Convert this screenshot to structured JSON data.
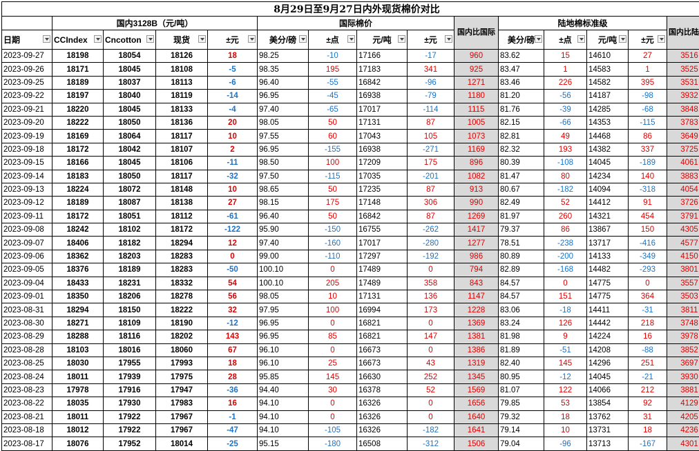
{
  "title": "8月29日至9月27日内外现货棉价对比",
  "groups": {
    "domestic": "国内3128B（元/吨）",
    "international": "国际棉价",
    "land": "陆地棉标准级"
  },
  "headers": {
    "date": "日期",
    "ccindex": "CCIndex",
    "cncotton": "Cncotton",
    "spot": "现货",
    "diff": "±元",
    "usc_lb": "美分/磅",
    "pts": "±点",
    "yuan_t": "元/吨",
    "yuan_diff": "±元",
    "dom_vs_intl": "国内比国际",
    "land_usc": "美分/磅",
    "land_pts": "±点",
    "land_yuan": "元/吨",
    "land_diff": "±元",
    "dom_vs_land": "国内比陆地标准级"
  },
  "colors": {
    "up": "#e00000",
    "down": "#1a73c9",
    "highlight": "#d9d9d9"
  },
  "rows": [
    [
      "2023-09-27",
      "18198",
      "18054",
      "18126",
      "18",
      "98.25",
      "-10",
      "17166",
      "-17",
      "960",
      "83.62",
      "15",
      "14610",
      "27",
      "3516"
    ],
    [
      "2023-09-26",
      "18171",
      "18045",
      "18108",
      "-5",
      "98.35",
      "195",
      "17183",
      "341",
      "925",
      "83.47",
      "1",
      "14583",
      "1",
      "3525"
    ],
    [
      "2023-09-25",
      "18189",
      "18037",
      "18113",
      "-6",
      "96.40",
      "-55",
      "16842",
      "-96",
      "1271",
      "83.46",
      "226",
      "14582",
      "395",
      "3531"
    ],
    [
      "2023-09-22",
      "18197",
      "18040",
      "18119",
      "-14",
      "96.95",
      "-45",
      "16938",
      "-79",
      "1180",
      "81.20",
      "-56",
      "14187",
      "-98",
      "3932"
    ],
    [
      "2023-09-21",
      "18220",
      "18045",
      "18133",
      "-4",
      "97.40",
      "-65",
      "17017",
      "-114",
      "1115",
      "81.76",
      "-39",
      "14285",
      "-68",
      "3848"
    ],
    [
      "2023-09-20",
      "18222",
      "18050",
      "18136",
      "20",
      "98.05",
      "50",
      "17131",
      "87",
      "1005",
      "82.15",
      "-66",
      "14353",
      "-115",
      "3783"
    ],
    [
      "2023-09-19",
      "18169",
      "18064",
      "18117",
      "10",
      "97.55",
      "60",
      "17043",
      "105",
      "1073",
      "82.81",
      "49",
      "14468",
      "86",
      "3649"
    ],
    [
      "2023-09-18",
      "18172",
      "18042",
      "18107",
      "2",
      "96.95",
      "-155",
      "16938",
      "-271",
      "1169",
      "82.32",
      "193",
      "14382",
      "337",
      "3725"
    ],
    [
      "2023-09-15",
      "18166",
      "18045",
      "18106",
      "-11",
      "98.50",
      "100",
      "17209",
      "175",
      "896",
      "80.39",
      "-108",
      "14045",
      "-189",
      "4061"
    ],
    [
      "2023-09-14",
      "18183",
      "18050",
      "18117",
      "-32",
      "97.50",
      "-115",
      "17035",
      "-201",
      "1082",
      "81.47",
      "80",
      "14234",
      "140",
      "3883"
    ],
    [
      "2023-09-13",
      "18224",
      "18072",
      "18148",
      "10",
      "98.65",
      "50",
      "17235",
      "87",
      "913",
      "80.67",
      "-182",
      "14094",
      "-318",
      "4054"
    ],
    [
      "2023-09-12",
      "18189",
      "18087",
      "18138",
      "27",
      "98.15",
      "175",
      "17148",
      "306",
      "990",
      "82.49",
      "52",
      "14412",
      "91",
      "3726"
    ],
    [
      "2023-09-11",
      "18172",
      "18051",
      "18112",
      "-61",
      "96.40",
      "50",
      "16842",
      "87",
      "1269",
      "81.97",
      "260",
      "14321",
      "454",
      "3791"
    ],
    [
      "2023-09-08",
      "18242",
      "18102",
      "18172",
      "-122",
      "95.90",
      "-150",
      "16755",
      "-262",
      "1417",
      "79.37",
      "86",
      "13867",
      "150",
      "4305"
    ],
    [
      "2023-09-07",
      "18406",
      "18182",
      "18294",
      "12",
      "97.40",
      "-160",
      "17017",
      "-280",
      "1277",
      "78.51",
      "-238",
      "13717",
      "-416",
      "4577"
    ],
    [
      "2023-09-06",
      "18362",
      "18203",
      "18283",
      "0",
      "99.00",
      "-110",
      "17297",
      "-192",
      "986",
      "80.89",
      "-200",
      "14133",
      "-349",
      "4150"
    ],
    [
      "2023-09-05",
      "18376",
      "18189",
      "18283",
      "-50",
      "100.10",
      "0",
      "17489",
      "0",
      "794",
      "82.89",
      "-168",
      "14482",
      "-293",
      "3801"
    ],
    [
      "2023-09-04",
      "18433",
      "18231",
      "18332",
      "54",
      "100.10",
      "205",
      "17489",
      "358",
      "843",
      "84.57",
      "0",
      "14775",
      "0",
      "3557"
    ],
    [
      "2023-09-01",
      "18350",
      "18206",
      "18278",
      "56",
      "98.05",
      "10",
      "17131",
      "136",
      "1147",
      "84.57",
      "151",
      "14775",
      "364",
      "3503"
    ],
    [
      "2023-08-31",
      "18294",
      "18150",
      "18222",
      "32",
      "97.95",
      "100",
      "16994",
      "173",
      "1228",
      "83.06",
      "-18",
      "14411",
      "-31",
      "3811"
    ],
    [
      "2023-08-30",
      "18271",
      "18109",
      "18190",
      "-12",
      "96.95",
      "0",
      "16821",
      "0",
      "1369",
      "83.24",
      "126",
      "14442",
      "218",
      "3748"
    ],
    [
      "2023-08-29",
      "18288",
      "18116",
      "18202",
      "143",
      "96.95",
      "85",
      "16821",
      "147",
      "1381",
      "81.98",
      "9",
      "14224",
      "16",
      "3978"
    ],
    [
      "2023-08-28",
      "18103",
      "18016",
      "18060",
      "67",
      "96.10",
      "0",
      "16673",
      "0",
      "1386",
      "81.89",
      "-51",
      "14208",
      "-88",
      "3852"
    ],
    [
      "2023-08-25",
      "18030",
      "17955",
      "17993",
      "18",
      "96.10",
      "25",
      "16673",
      "43",
      "1319",
      "82.40",
      "145",
      "14296",
      "251",
      "3697"
    ],
    [
      "2023-08-24",
      "18011",
      "17939",
      "17975",
      "28",
      "95.85",
      "145",
      "16630",
      "252",
      "1345",
      "80.95",
      "-12",
      "14045",
      "-21",
      "3930"
    ],
    [
      "2023-08-23",
      "17978",
      "17916",
      "17947",
      "-36",
      "94.40",
      "30",
      "16378",
      "52",
      "1569",
      "81.07",
      "122",
      "14066",
      "212",
      "3881"
    ],
    [
      "2023-08-22",
      "18035",
      "17930",
      "17983",
      "16",
      "94.10",
      "0",
      "16326",
      "0",
      "1656",
      "79.85",
      "53",
      "13854",
      "92",
      "4129"
    ],
    [
      "2023-08-21",
      "18011",
      "17922",
      "17967",
      "-1",
      "94.10",
      "0",
      "16326",
      "0",
      "1640",
      "79.32",
      "18",
      "13762",
      "31",
      "4205"
    ],
    [
      "2023-08-18",
      "18012",
      "17922",
      "17967",
      "-47",
      "94.10",
      "-105",
      "16326",
      "-182",
      "1641",
      "79.14",
      "10",
      "13731",
      "18",
      "4236"
    ],
    [
      "2023-08-17",
      "18076",
      "17952",
      "18014",
      "-25",
      "95.15",
      "-180",
      "16508",
      "-312",
      "1506",
      "79.04",
      "-96",
      "13713",
      "-167",
      "4301"
    ]
  ]
}
